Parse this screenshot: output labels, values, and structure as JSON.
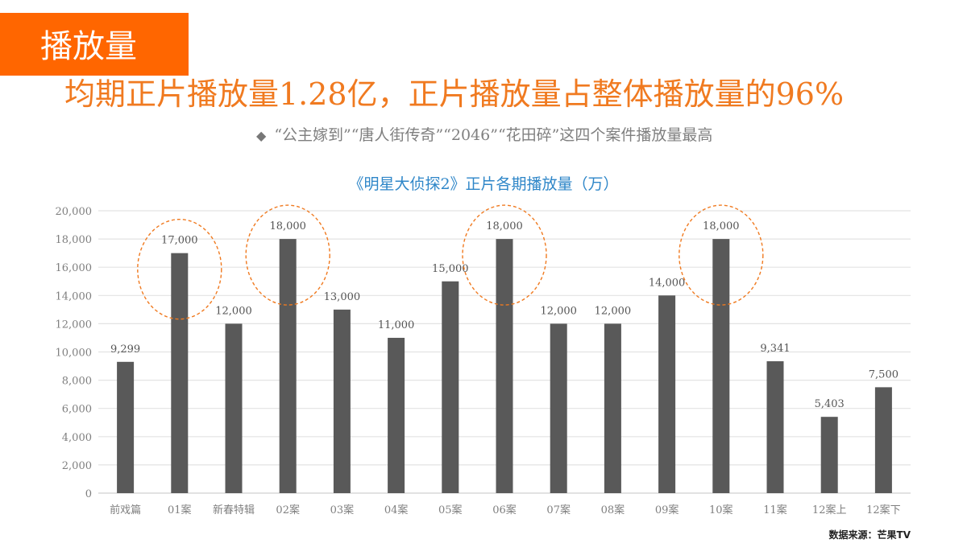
{
  "slide": {
    "tag_label": "播放量",
    "headline": "均期正片播放量1.28亿，正片播放量占整体播放量的96%",
    "subpoint_bullet": "◆",
    "subpoint": "“公主嫁到”“唐人街传奇”“2046”“花田碎”这四个案件播放量最高",
    "source": "数据来源：芒果TV"
  },
  "colors": {
    "accent_orange": "#ff6600",
    "headline_orange": "#f07a20",
    "bar": "#595959",
    "title_blue": "#2e86c8",
    "highlight_ellipse": "#f07a20"
  },
  "chart_data": {
    "type": "bar",
    "title": "《明星大侦探2》正片各期播放量（万）",
    "xlabel": "",
    "ylabel": "",
    "categories": [
      "前戏篇",
      "01案",
      "新春特辑",
      "02案",
      "03案",
      "04案",
      "05案",
      "06案",
      "07案",
      "08案",
      "09案",
      "10案",
      "11案",
      "12案上",
      "12案下"
    ],
    "values": [
      9299,
      17000,
      12000,
      18000,
      13000,
      11000,
      15000,
      18000,
      12000,
      12000,
      14000,
      18000,
      9341,
      5403,
      7500
    ],
    "value_labels": [
      "9,299",
      "17,000",
      "12,000",
      "18,000",
      "13,000",
      "11,000",
      "15,000",
      "18,000",
      "12,000",
      "12,000",
      "14,000",
      "18,000",
      "9,341",
      "5,403",
      "7,500"
    ],
    "ylim": [
      0,
      20000
    ],
    "yticks": [
      "0",
      "2,000",
      "4,000",
      "6,000",
      "8,000",
      "10,000",
      "12,000",
      "14,000",
      "16,000",
      "18,000",
      "20,000"
    ],
    "grid": true,
    "legend": null,
    "highlighted_categories": [
      "01案",
      "02案",
      "06案",
      "10案"
    ]
  }
}
